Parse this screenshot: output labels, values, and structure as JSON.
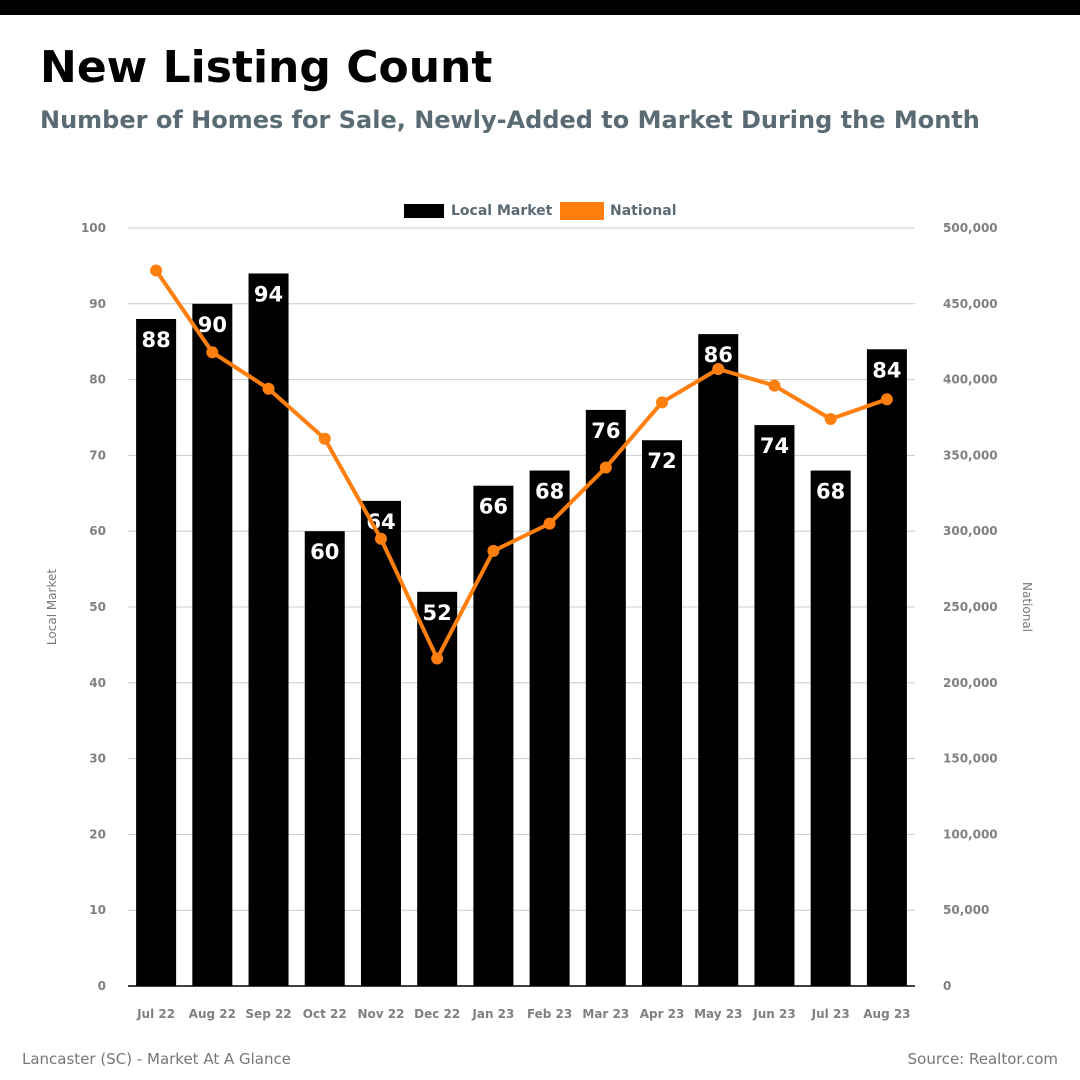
{
  "header": {
    "title": "New Listing Count",
    "subtitle": "Number of Homes for Sale, Newly-Added to Market During the Month"
  },
  "footer": {
    "left": "Lancaster (SC) - Market At A Glance",
    "right": "Source: Realtor.com"
  },
  "colors": {
    "local": "#000000",
    "national": "#ff7f0e",
    "grid": "#cccccc",
    "axis_text": "#808080",
    "legend_text": "#5a6b74"
  },
  "chart_data": {
    "type": "bar",
    "categories": [
      "Jul 22",
      "Aug 22",
      "Sep 22",
      "Oct 22",
      "Nov 22",
      "Dec 22",
      "Jan 23",
      "Feb 23",
      "Mar 23",
      "Apr 23",
      "May 23",
      "Jun 23",
      "Jul 23",
      "Aug 23"
    ],
    "series": [
      {
        "name": "Local Market",
        "type": "bar",
        "axis": "left",
        "values": [
          88,
          90,
          94,
          60,
          64,
          52,
          66,
          68,
          76,
          72,
          86,
          74,
          68,
          84
        ]
      },
      {
        "name": "National",
        "type": "line",
        "axis": "right",
        "values": [
          472000,
          418000,
          394000,
          361000,
          295000,
          216000,
          287000,
          305000,
          342000,
          385000,
          407000,
          396000,
          374000,
          387000
        ]
      }
    ],
    "y_left": {
      "label": "Local Market",
      "min": 0,
      "max": 100,
      "ticks": [
        0,
        10,
        20,
        30,
        40,
        50,
        60,
        70,
        80,
        90,
        100
      ],
      "tick_labels": [
        "0",
        "10",
        "20",
        "30",
        "40",
        "50",
        "60",
        "70",
        "80",
        "90",
        "100"
      ]
    },
    "y_right": {
      "label": "National",
      "min": 0,
      "max": 500000,
      "ticks": [
        0,
        50000,
        100000,
        150000,
        200000,
        250000,
        300000,
        350000,
        400000,
        450000,
        500000
      ],
      "tick_labels": [
        "0",
        "50,000",
        "100,000",
        "150,000",
        "200,000",
        "250,000",
        "300,000",
        "350,000",
        "400,000",
        "450,000",
        "500,000"
      ]
    },
    "grid": true,
    "legend": "top-center",
    "data_labels": true
  }
}
